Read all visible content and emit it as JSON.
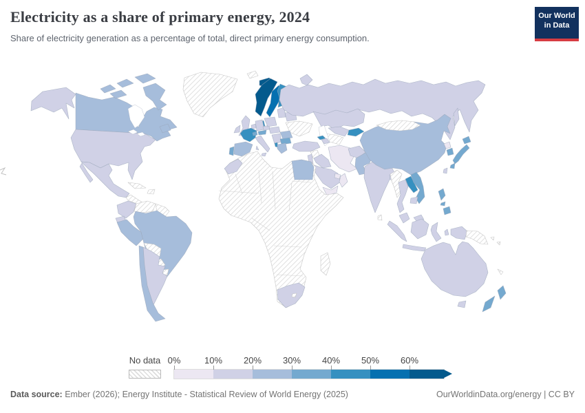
{
  "header": {
    "title": "Electricity as a share of primary energy, 2024",
    "subtitle": "Share of electricity generation as a percentage of total, direct primary energy consumption."
  },
  "logo": {
    "line1": "Our World",
    "line2": "in Data",
    "bg": "#12315e",
    "accent": "#d73c42"
  },
  "legend": {
    "no_data_label": "No data",
    "tick_labels": [
      "0%",
      "10%",
      "20%",
      "30%",
      "40%",
      "50%",
      "60%"
    ],
    "colors": [
      "#ece7f2",
      "#d0d1e6",
      "#a6bddb",
      "#74a9cf",
      "#3690c0",
      "#0570b0",
      "#045a8d"
    ]
  },
  "footer": {
    "source_label": "Data source:",
    "source_text": " Ember (2026); Energy Institute - Statistical Review of World Energy (2025)",
    "right_text": "OurWorldinData.org/energy | CC BY"
  },
  "map": {
    "palette": {
      "b0": "#ece7f2",
      "b1": "#d0d1e6",
      "b2": "#a6bddb",
      "b3": "#74a9cf",
      "b4": "#3690c0",
      "b5": "#0570b0",
      "b6": "#045a8d"
    },
    "regions": {
      "alaska": "b1",
      "canada": "b2",
      "greenland": "nodata",
      "svalbard": "nodata",
      "usa": "b1",
      "mexico": "b1",
      "centralamerica": "nodata",
      "cuba": "nodata",
      "hispaniola": "nodata",
      "colombia": "b1",
      "venezuela": "nodata",
      "guyanas": "nodata",
      "ecuador": "b1",
      "peru": "b2",
      "brazil": "b2",
      "bolivia": "nodata",
      "paraguay": "nodata",
      "uruguay": "nodata",
      "chile": "b2",
      "argentina": "b1",
      "iceland": "b6",
      "norway": "b6",
      "sweden": "b5",
      "finland": "b4",
      "denmark": "b4",
      "uk": "b1",
      "ireland": "b1",
      "portugal": "b3",
      "spain": "b2",
      "france": "b4",
      "benelux": "b1",
      "germany": "b1",
      "italy": "b1",
      "switzerland": "b3",
      "austria": "b3",
      "czechia": "b1",
      "poland": "b1",
      "baltics": "b1",
      "belarus": "b1",
      "ukraine": "nodata",
      "romania": "b2",
      "hungary": "b1",
      "balkans": "b1",
      "bulgaria": "b3",
      "greece": "b2",
      "albania": "b4",
      "russia": "b1",
      "kazakhstan": "b1",
      "uzbekistan": "b1",
      "turkmenistan": "nodata",
      "kyrgyzstan": "b4",
      "georgia": "b4",
      "azerbaijan": "b1",
      "turkey": "b1",
      "syria": "nodata",
      "iraq": "b1",
      "israel": "b1",
      "iran": "b0",
      "saudi": "b1",
      "yemen": "b0",
      "oman": "b0",
      "uae": "b0",
      "africa": "nodata",
      "egypt": "b2",
      "morocco": "b1",
      "southafrica": "b1",
      "lesotho": "nodata",
      "madagascar": "nodata",
      "afghanistan": "b1",
      "pakistan": "b2",
      "india": "b1",
      "bangladesh": "b1",
      "srilanka": "nodata",
      "china": "b2",
      "mongolia": "nodata",
      "nkorea": "b0",
      "skorea": "b3",
      "japan": "b3",
      "taiwan": "b1",
      "myanmar": "nodata",
      "thailand": "b1",
      "laos": "b4",
      "vietnam": "b3",
      "cambodia": "b1",
      "malaysia": "b1",
      "indonesia": "b1",
      "png": "nodata",
      "solomons": "nodata",
      "philippines": "b3",
      "australia": "b1",
      "nz": "b3",
      "newcaledonia": "nodata"
    }
  },
  "chart_data": {
    "type": "heatmap",
    "subtype": "choropleth-world-map",
    "title": "Electricity as a share of primary energy, 2024",
    "subtitle": "Share of electricity generation as a percentage of total, direct primary energy consumption.",
    "unit": "%",
    "legend_position": "bottom",
    "bins": [
      {
        "label": "0%-10%",
        "color": "#ece7f2"
      },
      {
        "label": "10%-20%",
        "color": "#d0d1e6"
      },
      {
        "label": "20%-30%",
        "color": "#a6bddb"
      },
      {
        "label": "30%-40%",
        "color": "#74a9cf"
      },
      {
        "label": "40%-50%",
        "color": "#3690c0"
      },
      {
        "label": "50%-60%",
        "color": "#0570b0"
      },
      {
        "label": "60%+",
        "color": "#045a8d"
      },
      {
        "label": "No data",
        "color": "hatched"
      }
    ],
    "values": {
      "Canada": "20-30%",
      "United States": "10-20%",
      "Alaska (US)": "10-20%",
      "Mexico": "10-20%",
      "Greenland": "No data",
      "Central America": "No data",
      "Cuba": "No data",
      "Colombia": "10-20%",
      "Venezuela": "No data",
      "Ecuador": "10-20%",
      "Peru": "20-30%",
      "Brazil": "20-30%",
      "Bolivia": "No data",
      "Paraguay": "No data",
      "Uruguay": "No data",
      "Chile": "20-30%",
      "Argentina": "10-20%",
      "Iceland": "60%+",
      "Norway": "60%+",
      "Sweden": "50-60%",
      "Finland": "40-50%",
      "Denmark": "40-50%",
      "United Kingdom": "10-20%",
      "Ireland": "10-20%",
      "France": "40-50%",
      "Spain": "20-30%",
      "Portugal": "30-40%",
      "Germany": "10-20%",
      "Italy": "10-20%",
      "Switzerland": "30-40%",
      "Austria": "30-40%",
      "Poland": "10-20%",
      "Ukraine": "No data",
      "Romania": "20-30%",
      "Bulgaria": "30-40%",
      "Greece": "20-30%",
      "Albania": "40-50%",
      "Russia": "10-20%",
      "Turkey": "10-20%",
      "Kazakhstan": "10-20%",
      "Turkmenistan": "No data",
      "Kyrgyzstan": "40-50%",
      "Georgia": "40-50%",
      "Iran": "0-10%",
      "Iraq": "10-20%",
      "Syria": "No data",
      "Saudi Arabia": "10-20%",
      "Yemen": "0-10%",
      "Oman": "0-10%",
      "United Arab Emirates": "0-10%",
      "Egypt": "20-30%",
      "Morocco": "10-20%",
      "Algeria": "No data",
      "Libya": "No data",
      "Sub-Saharan Africa (most)": "No data",
      "South Africa": "10-20%",
      "Madagascar": "No data",
      "Afghanistan": "10-20%",
      "Pakistan": "20-30%",
      "India": "10-20%",
      "Bangladesh": "10-20%",
      "Sri Lanka": "No data",
      "China": "20-30%",
      "Mongolia": "No data",
      "North Korea": "0-10%",
      "South Korea": "30-40%",
      "Japan": "30-40%",
      "Taiwan": "10-20%",
      "Myanmar": "No data",
      "Thailand": "10-20%",
      "Laos": "40-50%",
      "Vietnam": "30-40%",
      "Cambodia": "10-20%",
      "Malaysia": "10-20%",
      "Indonesia": "10-20%",
      "Philippines": "30-40%",
      "Papua New Guinea": "No data",
      "Australia": "10-20%",
      "New Zealand": "30-40%"
    }
  }
}
